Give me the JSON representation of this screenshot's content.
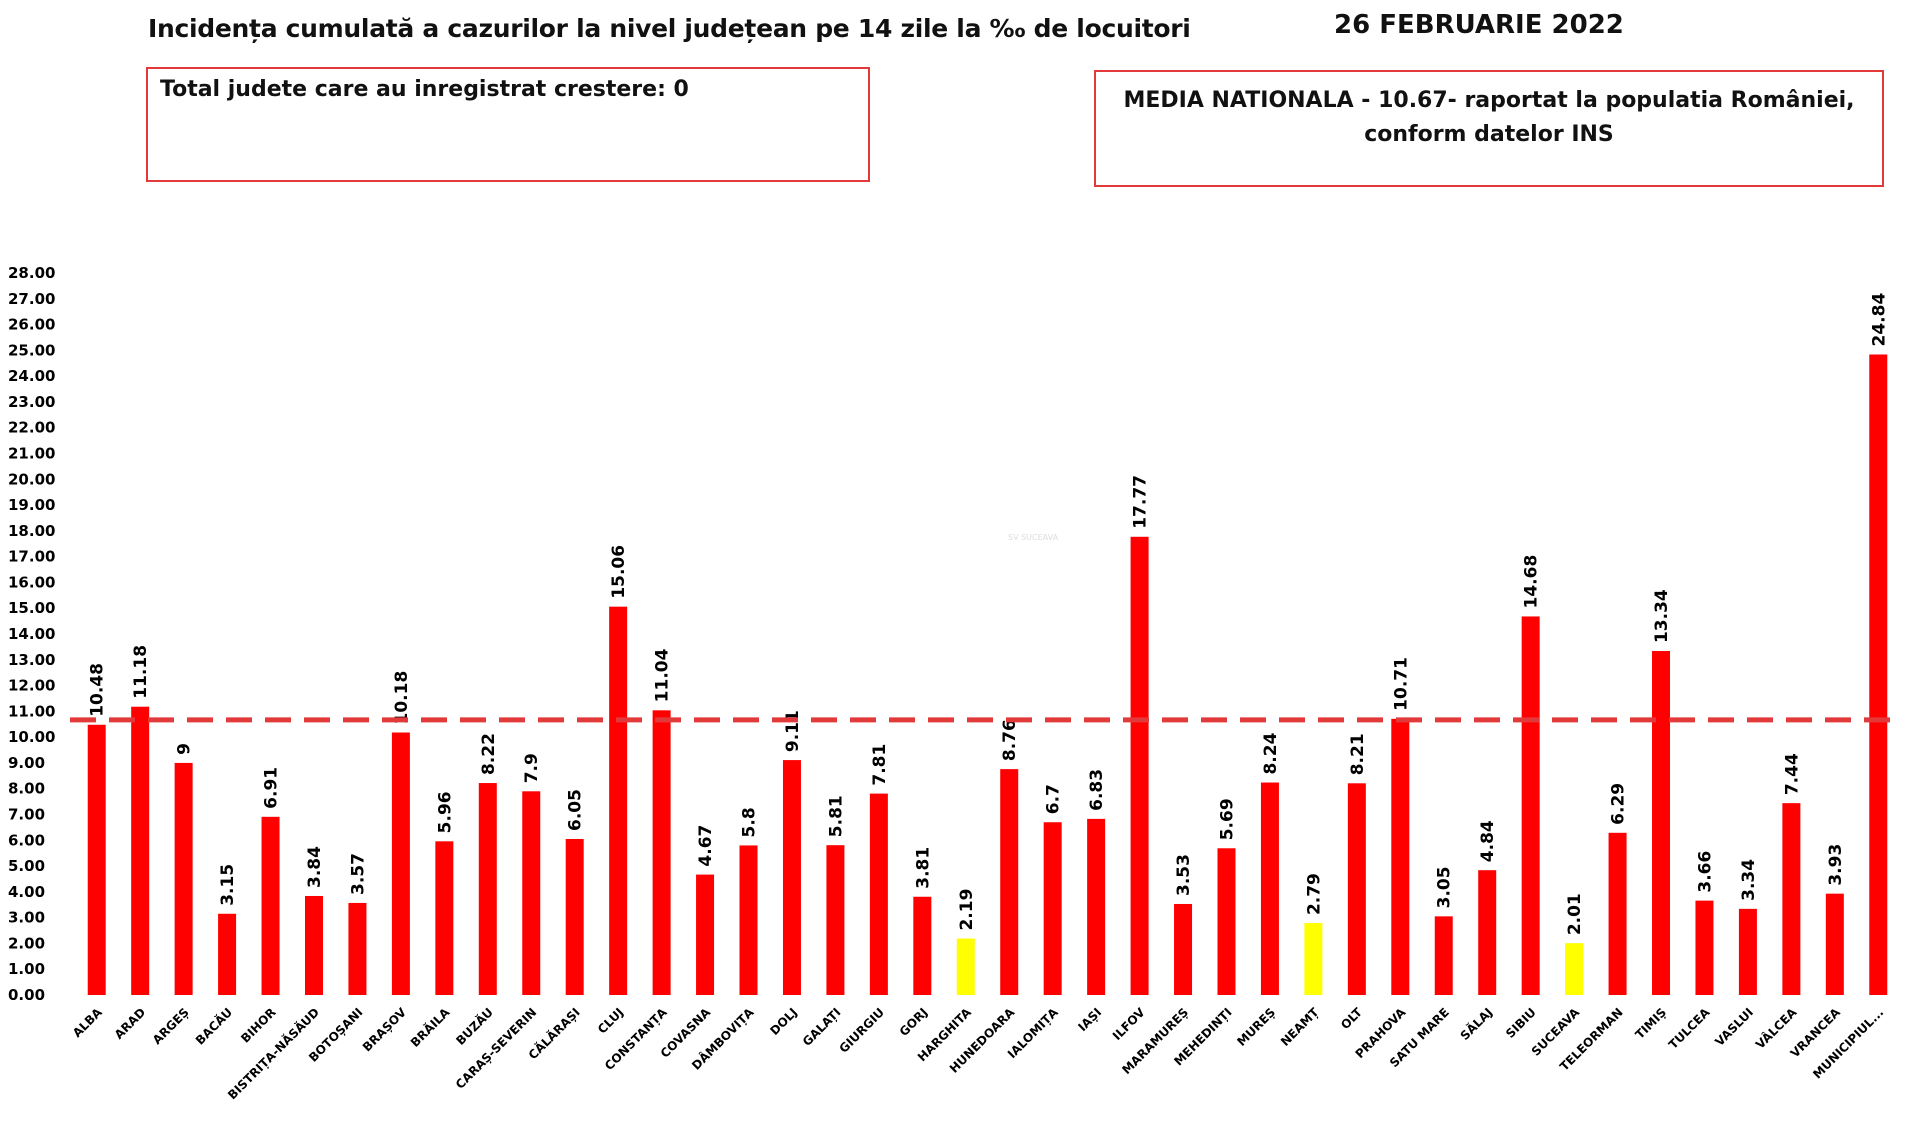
{
  "header": {
    "title": "Incidența cumulată a cazurilor la nivel județean pe 14 zile la ‰ de locuitori",
    "date": "26 FEBRUARIE 2022",
    "box_left_text": "Total judete care au inregistrat crestere: 0",
    "box_right_line1": "MEDIA NATIONALA - 10.67-  raportat la populatia României,",
    "box_right_line2": "conform datelor INS",
    "watermark": "SV SUCEAVA"
  },
  "colors": {
    "bar_default": "#ff0000",
    "bar_low": "#ffff00",
    "reference_line": "#e23a3a",
    "box_border": "#e23a3a"
  },
  "chart_data": {
    "type": "bar",
    "title": "Incidența cumulată a cazurilor la nivel județean pe 14 zile la ‰ de locuitori",
    "xlabel": "",
    "ylabel": "",
    "ylim": [
      0,
      28
    ],
    "ytick_step": 1,
    "ytick_labels": [
      "0.00",
      "1.00",
      "2.00",
      "3.00",
      "4.00",
      "5.00",
      "6.00",
      "7.00",
      "8.00",
      "9.00",
      "10.00",
      "11.00",
      "12.00",
      "13.00",
      "14.00",
      "15.00",
      "16.00",
      "17.00",
      "18.00",
      "19.00",
      "20.00",
      "21.00",
      "22.00",
      "23.00",
      "24.00",
      "25.00",
      "26.00",
      "27.00",
      "28.00"
    ],
    "grid": false,
    "legend": "none",
    "reference_line": {
      "value": 10.67,
      "style": "dashed"
    },
    "categories": [
      "ALBA",
      "ARAD",
      "ARGEȘ",
      "BACĂU",
      "BIHOR",
      "BISTRIȚA-NĂSĂUD",
      "BOTOȘANI",
      "BRAȘOV",
      "BRĂILA",
      "BUZĂU",
      "CARAȘ-SEVERIN",
      "CĂLĂRAȘI",
      "CLUJ",
      "CONSTANȚA",
      "COVASNA",
      "DÂMBOVIȚA",
      "DOLJ",
      "GALAȚI",
      "GIURGIU",
      "GORJ",
      "HARGHITA",
      "HUNEDOARA",
      "IALOMIȚA",
      "IAȘI",
      "ILFOV",
      "MARAMUREȘ",
      "MEHEDINȚI",
      "MUREȘ",
      "NEAMȚ",
      "OLT",
      "PRAHOVA",
      "SATU MARE",
      "SĂLAJ",
      "SIBIU",
      "SUCEAVA",
      "TELEORMAN",
      "TIMIȘ",
      "TULCEA",
      "VASLUI",
      "VÂLCEA",
      "VRANCEA",
      "MUNICIPIUL..."
    ],
    "values": [
      10.48,
      11.18,
      9,
      3.15,
      6.91,
      3.84,
      3.57,
      10.18,
      5.96,
      8.22,
      7.9,
      6.05,
      15.06,
      11.04,
      4.67,
      5.8,
      9.11,
      5.81,
      7.81,
      3.81,
      2.19,
      8.76,
      6.7,
      6.83,
      17.77,
      3.53,
      5.69,
      8.24,
      2.79,
      8.21,
      10.71,
      3.05,
      4.84,
      14.68,
      2.01,
      6.29,
      13.34,
      3.66,
      3.34,
      7.44,
      3.93,
      24.84
    ],
    "value_labels": [
      "10.48",
      "11.18",
      "9",
      "3.15",
      "6.91",
      "3.84",
      "3.57",
      "10.18",
      "5.96",
      "8.22",
      "7.9",
      "6.05",
      "15.06",
      "11.04",
      "4.67",
      "5.8",
      "9.11",
      "5.81",
      "7.81",
      "3.81",
      "2.19",
      "8.76",
      "6.7",
      "6.83",
      "17.77",
      "3.53",
      "5.69",
      "8.24",
      "2.79",
      "8.21",
      "10.71",
      "3.05",
      "4.84",
      "14.68",
      "2.01",
      "6.29",
      "13.34",
      "3.66",
      "3.34",
      "7.44",
      "3.93",
      "24.84"
    ],
    "bar_colors": [
      "#ff0000",
      "#ff0000",
      "#ff0000",
      "#ff0000",
      "#ff0000",
      "#ff0000",
      "#ff0000",
      "#ff0000",
      "#ff0000",
      "#ff0000",
      "#ff0000",
      "#ff0000",
      "#ff0000",
      "#ff0000",
      "#ff0000",
      "#ff0000",
      "#ff0000",
      "#ff0000",
      "#ff0000",
      "#ff0000",
      "#ffff00",
      "#ff0000",
      "#ff0000",
      "#ff0000",
      "#ff0000",
      "#ff0000",
      "#ff0000",
      "#ff0000",
      "#ffff00",
      "#ff0000",
      "#ff0000",
      "#ff0000",
      "#ff0000",
      "#ff0000",
      "#ffff00",
      "#ff0000",
      "#ff0000",
      "#ff0000",
      "#ff0000",
      "#ff0000",
      "#ff0000",
      "#ff0000"
    ]
  }
}
